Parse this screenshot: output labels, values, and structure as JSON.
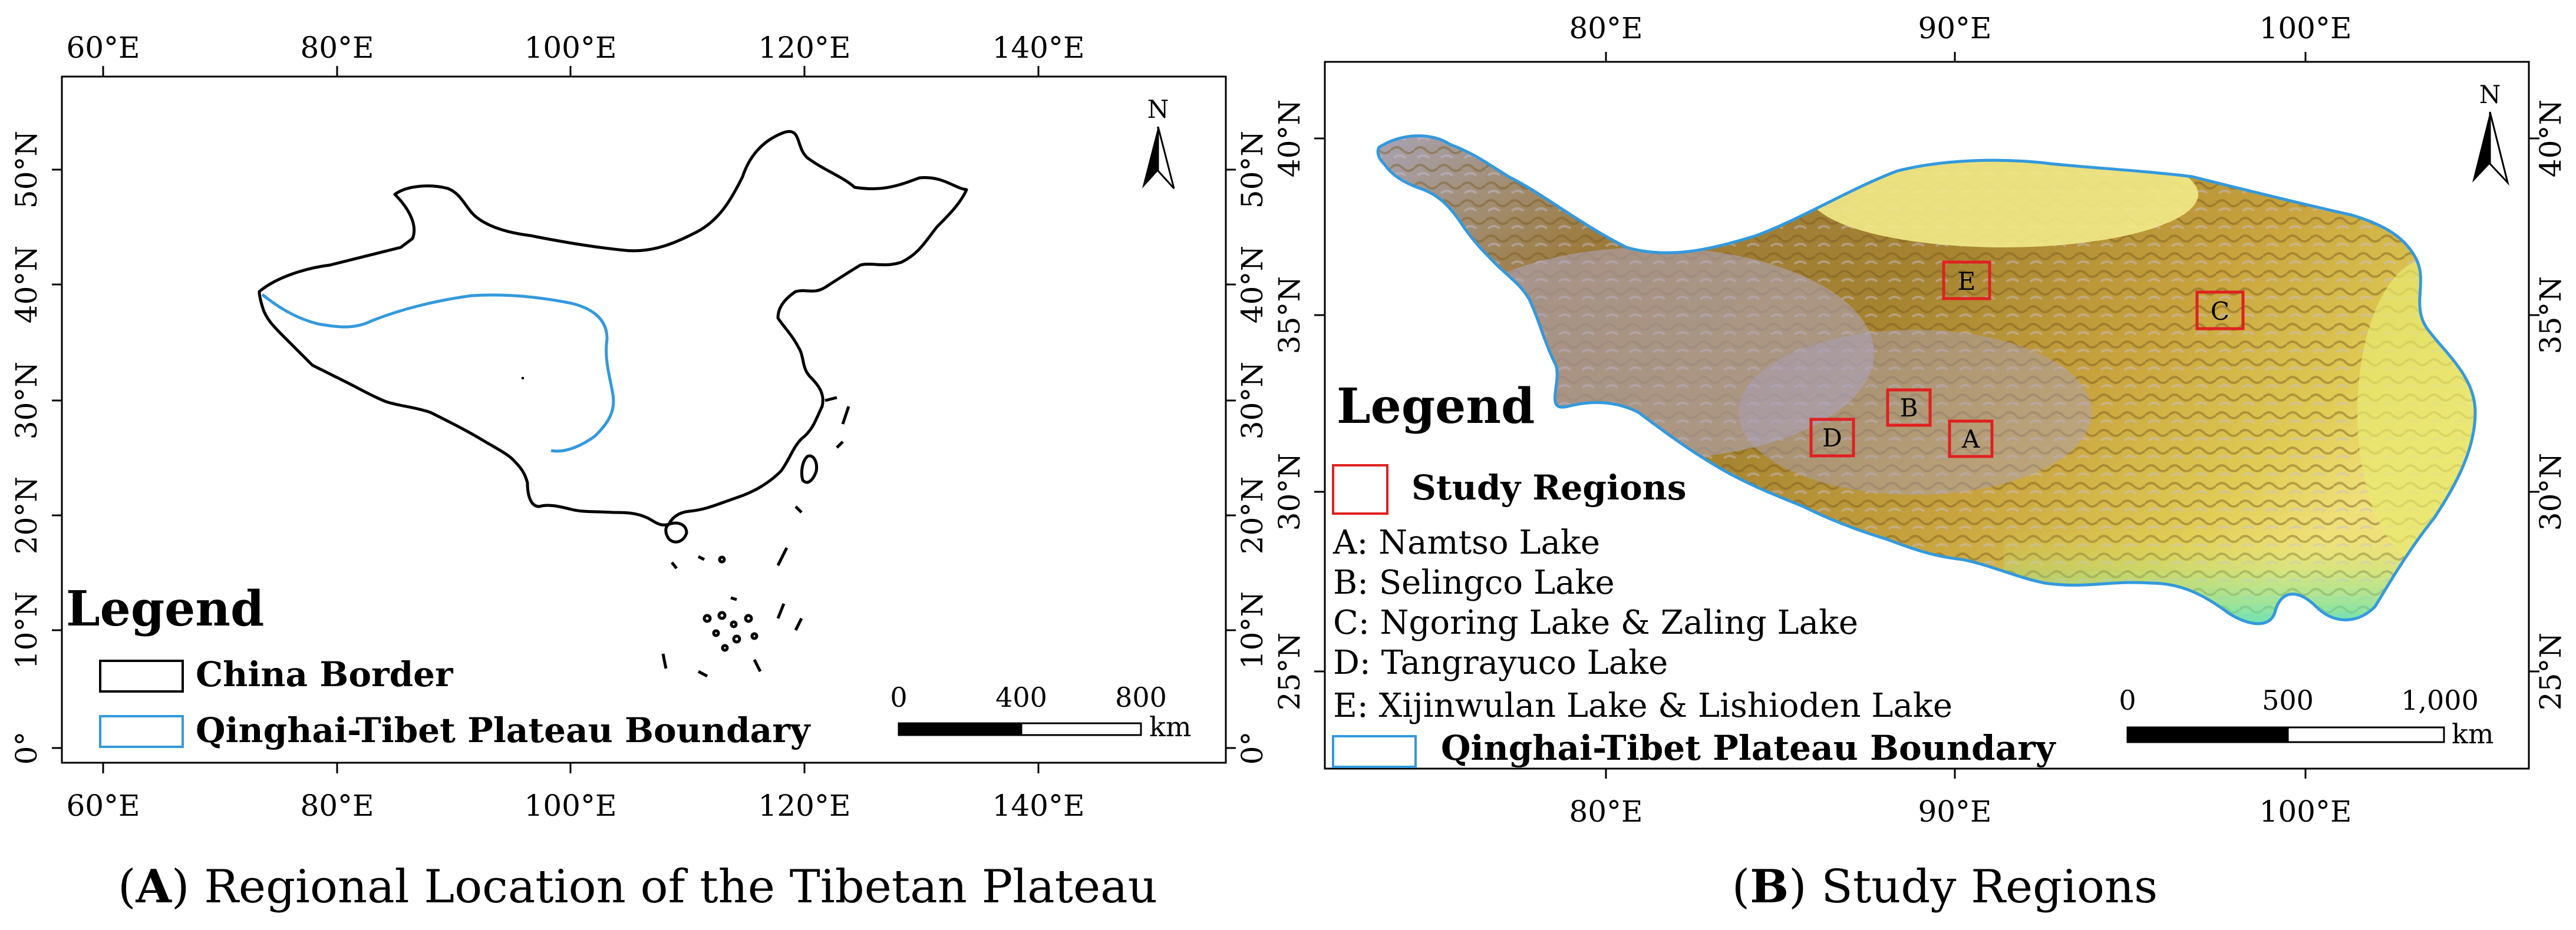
{
  "panelA": {
    "caption_letter": "A",
    "caption_text": "Regional Location of the Tibetan Plateau",
    "lon_labels": [
      "60°E",
      "80°E",
      "100°E",
      "120°E",
      "140°E"
    ],
    "lat_labels": [
      "0°",
      "10°N",
      "20°N",
      "30°N",
      "40°N",
      "50°N"
    ],
    "north_label": "N",
    "legend_title": "Legend",
    "legend_items": [
      {
        "label": "China Border",
        "color": "#000000"
      },
      {
        "label": "Qinghai-Tibet Plateau Boundary",
        "color": "#3399dd"
      }
    ],
    "scale_labels": [
      "0",
      "400",
      "800"
    ],
    "scale_unit": "km"
  },
  "panelB": {
    "caption_letter": "B",
    "caption_text": "Study Regions",
    "lon_labels": [
      "80°E",
      "90°E",
      "100°E"
    ],
    "lat_labels": [
      "25°N",
      "30°N",
      "35°N",
      "40°N"
    ],
    "north_label": "N",
    "legend_title": "Legend",
    "legend_box_label": "Study Regions",
    "legend_box_color": "#e02020",
    "region_labels": [
      "A: Namtso Lake",
      "B: Selingco Lake",
      "C: Ngoring Lake & Zaling Lake",
      "D: Tangrayuco Lake",
      "E: Xijinwulan Lake & Lishioden Lake"
    ],
    "boundary_label": "Qinghai-Tibet Plateau Boundary",
    "boundary_color": "#3399dd",
    "markers": [
      {
        "id": "A",
        "name": "Namtso Lake"
      },
      {
        "id": "B",
        "name": "Selingco Lake"
      },
      {
        "id": "C",
        "name": "Ngoring Lake & Zaling Lake"
      },
      {
        "id": "D",
        "name": "Tangrayuco Lake"
      },
      {
        "id": "E",
        "name": "Xijinwulan Lake & Lishioden Lake"
      }
    ],
    "scale_labels": [
      "0",
      "500",
      "1,000"
    ],
    "scale_unit": "km"
  }
}
